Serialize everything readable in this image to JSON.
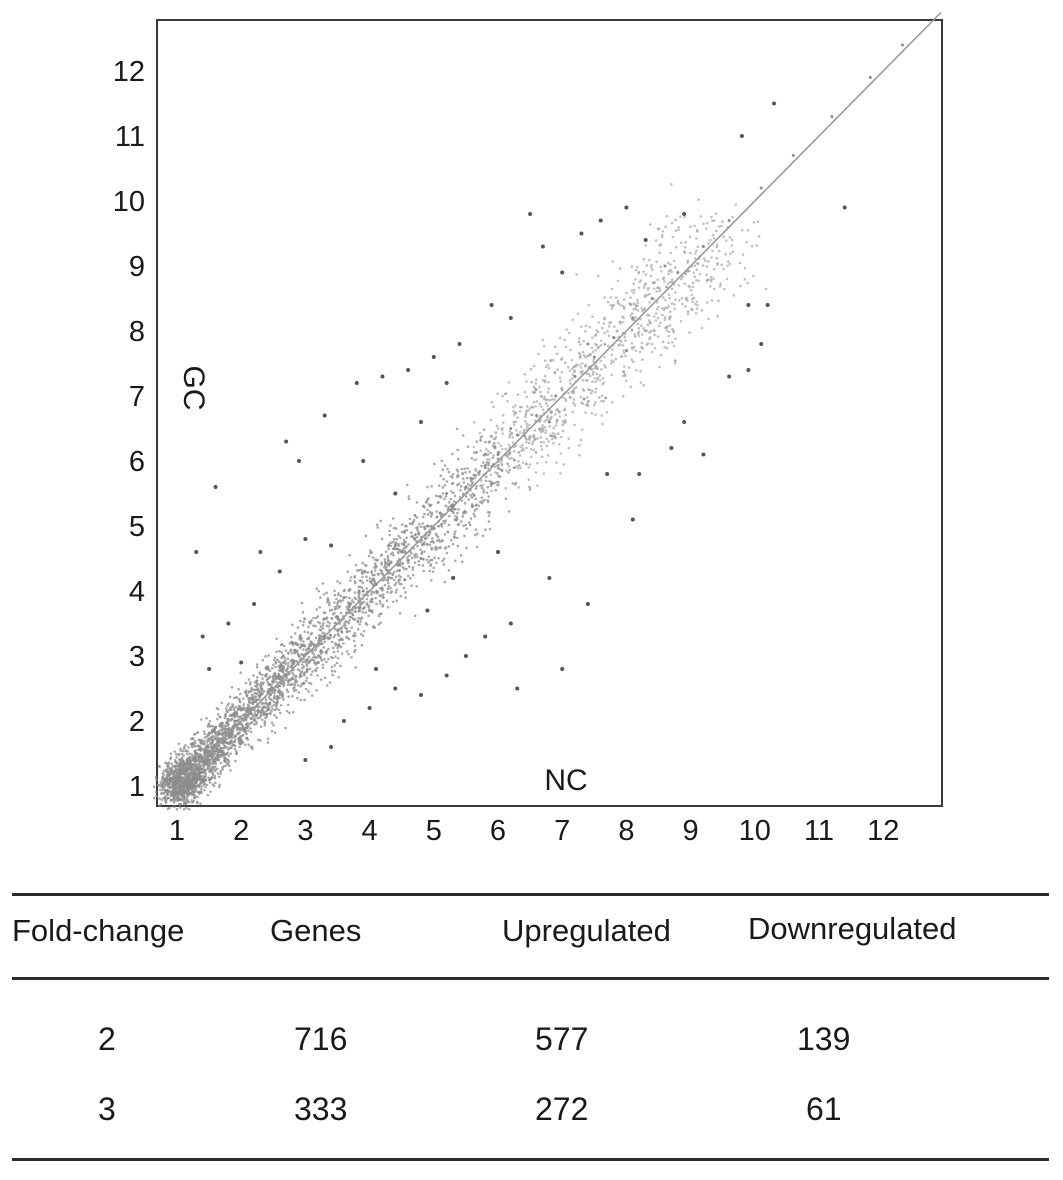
{
  "chart_data": {
    "type": "scatter",
    "title": "",
    "xlabel": "NC",
    "ylabel": "GC",
    "xlim": [
      0.7,
      12.9
    ],
    "ylim": [
      0.7,
      12.9
    ],
    "xticks": [
      1,
      2,
      3,
      4,
      5,
      6,
      7,
      8,
      9,
      10,
      11,
      12
    ],
    "yticks": [
      1,
      2,
      3,
      4,
      5,
      6,
      7,
      8,
      9,
      10,
      11,
      12
    ],
    "grid": false,
    "legend": "none",
    "reference_line": {
      "from": [
        1,
        1
      ],
      "to": [
        12.9,
        12.9
      ],
      "color": "#9a9a9a"
    },
    "point_color": "#8c8c8c",
    "outlier_color": "#555555",
    "series": [
      {
        "values_note_removed": "",
        "points": [
          [
            1.1,
            1.2
          ],
          [
            1.3,
            1.5
          ],
          [
            1.5,
            1.4
          ],
          [
            1.7,
            1.8
          ],
          [
            1.9,
            2.0
          ],
          [
            2.1,
            2.2
          ],
          [
            2.3,
            2.4
          ],
          [
            2.5,
            2.6
          ],
          [
            2.7,
            2.7
          ],
          [
            2.9,
            3.0
          ],
          [
            3.1,
            3.2
          ],
          [
            3.3,
            3.3
          ],
          [
            3.5,
            3.6
          ],
          [
            3.7,
            3.8
          ],
          [
            3.9,
            4.0
          ],
          [
            4.1,
            4.1
          ],
          [
            4.3,
            4.4
          ],
          [
            4.5,
            4.6
          ],
          [
            4.7,
            4.8
          ],
          [
            4.9,
            5.0
          ],
          [
            5.1,
            5.2
          ],
          [
            5.3,
            5.3
          ],
          [
            5.5,
            5.6
          ],
          [
            5.8,
            5.9
          ],
          [
            6.0,
            6.1
          ],
          [
            6.3,
            6.4
          ],
          [
            6.6,
            6.7
          ],
          [
            6.9,
            7.0
          ],
          [
            7.2,
            7.3
          ],
          [
            7.5,
            7.6
          ],
          [
            7.8,
            7.9
          ],
          [
            8.1,
            8.2
          ],
          [
            8.4,
            8.5
          ],
          [
            8.8,
            8.9
          ],
          [
            9.2,
            9.3
          ],
          [
            9.6,
            9.7
          ],
          [
            10.1,
            10.2
          ],
          [
            10.6,
            10.7
          ],
          [
            11.2,
            11.3
          ],
          [
            11.8,
            11.9
          ],
          [
            12.3,
            12.4
          ],
          [
            1.2,
            1.0
          ],
          [
            1.4,
            1.1
          ],
          [
            1.6,
            1.9
          ],
          [
            2.0,
            1.7
          ],
          [
            2.4,
            2.1
          ],
          [
            2.8,
            3.2
          ],
          [
            3.2,
            2.9
          ],
          [
            3.6,
            3.9
          ],
          [
            4.0,
            3.7
          ],
          [
            4.4,
            4.7
          ],
          [
            4.8,
            4.5
          ],
          [
            5.2,
            5.5
          ],
          [
            5.6,
            5.3
          ],
          [
            6.2,
            6.5
          ],
          [
            6.8,
            6.6
          ],
          [
            7.4,
            7.8
          ],
          [
            8.0,
            7.7
          ],
          [
            8.6,
            9.0
          ]
        ]
      },
      {
        "name_note_removed": "",
        "points": [
          [
            1.3,
            4.6
          ],
          [
            1.6,
            5.6
          ],
          [
            1.4,
            3.3
          ],
          [
            1.5,
            2.8
          ],
          [
            2.3,
            4.6
          ],
          [
            2.7,
            6.3
          ],
          [
            2.9,
            6.0
          ],
          [
            3.3,
            6.7
          ],
          [
            3.8,
            7.2
          ],
          [
            4.2,
            7.3
          ],
          [
            4.6,
            7.4
          ],
          [
            5.0,
            7.6
          ],
          [
            5.4,
            7.8
          ],
          [
            5.2,
            7.2
          ],
          [
            5.9,
            8.4
          ],
          [
            6.2,
            8.2
          ],
          [
            6.5,
            9.8
          ],
          [
            6.7,
            9.3
          ],
          [
            7.0,
            8.9
          ],
          [
            7.3,
            9.5
          ],
          [
            7.6,
            9.7
          ],
          [
            8.0,
            9.9
          ],
          [
            8.3,
            9.4
          ],
          [
            8.9,
            9.8
          ],
          [
            10.3,
            11.5
          ],
          [
            9.8,
            11.0
          ],
          [
            4.4,
            5.5
          ],
          [
            3.4,
            4.7
          ],
          [
            3.9,
            6.0
          ],
          [
            4.8,
            6.6
          ],
          [
            2.0,
            2.9
          ],
          [
            1.8,
            3.5
          ],
          [
            2.2,
            3.8
          ],
          [
            3.0,
            4.8
          ],
          [
            2.6,
            4.3
          ],
          [
            3.0,
            1.4
          ],
          [
            3.4,
            1.6
          ],
          [
            4.0,
            2.2
          ],
          [
            4.4,
            2.5
          ],
          [
            4.8,
            2.4
          ],
          [
            5.2,
            2.7
          ],
          [
            5.5,
            3.0
          ],
          [
            5.8,
            3.3
          ],
          [
            6.2,
            3.5
          ],
          [
            6.3,
            2.5
          ],
          [
            7.0,
            2.8
          ],
          [
            6.8,
            4.2
          ],
          [
            7.7,
            5.8
          ],
          [
            8.1,
            5.1
          ],
          [
            8.2,
            5.8
          ],
          [
            8.7,
            6.2
          ],
          [
            9.2,
            6.1
          ],
          [
            8.9,
            6.6
          ],
          [
            9.6,
            7.3
          ],
          [
            9.9,
            7.4
          ],
          [
            9.9,
            8.4
          ],
          [
            10.2,
            8.4
          ],
          [
            10.1,
            7.8
          ],
          [
            11.4,
            9.9
          ],
          [
            7.4,
            3.8
          ],
          [
            6.0,
            4.6
          ],
          [
            5.3,
            4.2
          ],
          [
            4.9,
            3.7
          ],
          [
            4.1,
            2.8
          ],
          [
            3.6,
            2.0
          ]
        ]
      }
    ]
  },
  "table": {
    "headers": [
      "Fold-change",
      "Genes",
      "Upregulated",
      "Downregulated"
    ],
    "rows": [
      [
        "2",
        "716",
        "577",
        "139"
      ],
      [
        "3",
        "333",
        "272",
        "61"
      ]
    ]
  }
}
